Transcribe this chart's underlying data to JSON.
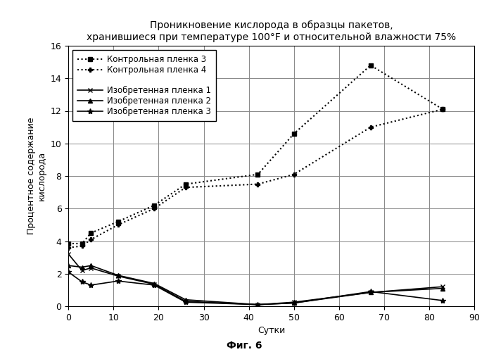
{
  "title": "Проникновение кислорода в образцы пакетов,\nхранившиеся при температуре 100°F и относительной влажности 75%",
  "xlabel": "Сутки",
  "ylabel": "Процентное содержание\nкислорода",
  "fig_label": "Фиг. 6",
  "xlim": [
    0,
    90
  ],
  "ylim": [
    0,
    16
  ],
  "xticks": [
    0,
    10,
    20,
    30,
    40,
    50,
    60,
    70,
    80,
    90
  ],
  "yticks": [
    0,
    2,
    4,
    6,
    8,
    10,
    12,
    14,
    16
  ],
  "series": [
    {
      "label": "Контрольная пленка 3",
      "x": [
        0,
        3,
        5,
        11,
        19,
        26,
        42,
        50,
        67,
        83
      ],
      "y": [
        3.85,
        3.85,
        4.5,
        5.2,
        6.2,
        7.5,
        8.1,
        10.6,
        14.8,
        12.1
      ],
      "linestyle": ":",
      "marker": "s",
      "markersize": 4,
      "linewidth": 1.5
    },
    {
      "label": "Контрольная пленка 4",
      "x": [
        0,
        3,
        5,
        11,
        19,
        26,
        42,
        50,
        67,
        83
      ],
      "y": [
        3.6,
        3.7,
        4.1,
        5.0,
        6.0,
        7.3,
        7.5,
        8.1,
        11.0,
        12.1
      ],
      "linestyle": ":",
      "marker": "P",
      "markersize": 5,
      "linewidth": 1.5
    },
    {
      "label": "Изобретенная пленка 1",
      "x": [
        0,
        3,
        5,
        11,
        19,
        26,
        42,
        50,
        67,
        83
      ],
      "y": [
        3.2,
        2.2,
        2.35,
        1.85,
        1.35,
        0.3,
        0.1,
        0.25,
        0.85,
        1.2
      ],
      "linestyle": "-",
      "marker": "x",
      "markersize": 5,
      "linewidth": 1.2
    },
    {
      "label": "Изобретенная пленка 2",
      "x": [
        0,
        3,
        5,
        11,
        19,
        26,
        42,
        50,
        67,
        83
      ],
      "y": [
        2.5,
        2.4,
        2.5,
        1.9,
        1.4,
        0.4,
        0.1,
        0.2,
        0.85,
        1.1
      ],
      "linestyle": "-",
      "marker": "^",
      "markersize": 5,
      "linewidth": 1.2
    },
    {
      "label": "Изобретенная пленка 3",
      "x": [
        0,
        3,
        5,
        11,
        19,
        26,
        42,
        50,
        67,
        83
      ],
      "y": [
        2.1,
        1.5,
        1.3,
        1.55,
        1.3,
        0.25,
        0.1,
        0.2,
        0.9,
        0.35
      ],
      "linestyle": "-",
      "marker": "*",
      "markersize": 6,
      "linewidth": 1.2
    }
  ],
  "background_color": "#ffffff",
  "title_fontsize": 10,
  "axis_label_fontsize": 9,
  "tick_fontsize": 9,
  "legend_fontsize": 8.5
}
